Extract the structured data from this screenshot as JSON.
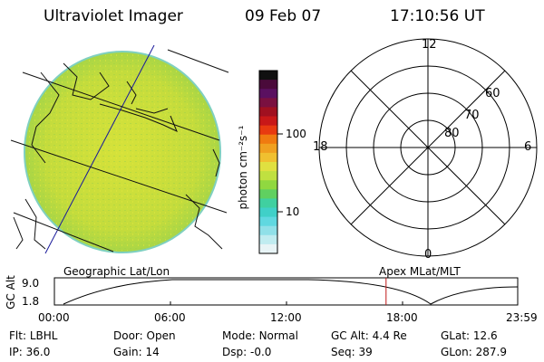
{
  "header": {
    "instrument": "Ultraviolet Imager",
    "date": "09 Feb 07",
    "time": "17:10:56 UT"
  },
  "colorbar": {
    "unit_label": "photon cm⁻²s⁻¹",
    "tick_labels": [
      "100",
      "10"
    ],
    "colors": [
      "#101010",
      "#4a0a3a",
      "#5a1060",
      "#7a1040",
      "#a01020",
      "#c81818",
      "#e83a10",
      "#f07a10",
      "#f0a020",
      "#f0c030",
      "#e0e040",
      "#c0e040",
      "#90d840",
      "#60d060",
      "#40d0a0",
      "#40d0c8",
      "#60d8e0",
      "#90e0e8",
      "#c0ecf0",
      "#e8f4f6"
    ]
  },
  "polar": {
    "mlt_labels": {
      "top": "12",
      "left": "18",
      "right": "6",
      "bottom": "0"
    },
    "lat_labels": [
      "60",
      "70",
      "80"
    ]
  },
  "timeline": {
    "y_axis_label": "GC Alt",
    "y_ticks": [
      "9.0",
      "1.8"
    ],
    "left_caption": "Geographic Lat/Lon",
    "right_caption": "Apex MLat/MLT",
    "x_ticks": [
      "00:00",
      "06:00",
      "12:00",
      "18:00",
      "23:59"
    ],
    "marker_time": "17:10:56",
    "marker_color": "#c01818"
  },
  "status": {
    "row1": [
      {
        "label": "Flt:",
        "value": "LBHL"
      },
      {
        "label": "Door:",
        "value": "Open"
      },
      {
        "label": "Mode:",
        "value": "Normal"
      },
      {
        "label": "GC Alt:",
        "value": "4.4 Re"
      },
      {
        "label": "GLat:",
        "value": "12.6"
      }
    ],
    "row2": [
      {
        "label": "IP:",
        "value": "36.0"
      },
      {
        "label": "Gain:",
        "value": "14"
      },
      {
        "label": "Dsp:",
        "value": "-0.0"
      },
      {
        "label": "Seq:",
        "value": "39"
      },
      {
        "label": "GLon:",
        "value": "287.9"
      }
    ]
  }
}
